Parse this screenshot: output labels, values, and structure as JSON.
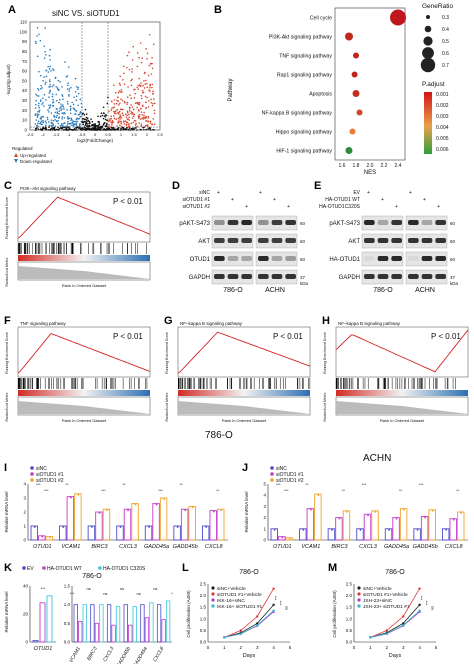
{
  "panels": {
    "A": {
      "label": "A",
      "title": "siNC VS. siOTUD1",
      "ylabel": "-log10(p.adjust)",
      "xlabel": "log2(FoldChange)",
      "yticks": [
        "0",
        "10",
        "20",
        "30",
        "40",
        "50",
        "60",
        "70",
        "80",
        "90",
        "100",
        "110"
      ],
      "xticks": [
        "-2.5",
        "-2",
        "-1.5",
        "-1",
        "-0.5",
        "0",
        "0.5",
        "1",
        "1.5",
        "2",
        "2.5"
      ],
      "legend_title": "Regulated",
      "legend_up": "Up-regulated",
      "legend_down": "Down-regulated",
      "colors": {
        "up": "#d9442c",
        "down": "#2b7bba",
        "ns": "#111111"
      }
    },
    "B": {
      "label": "B",
      "ylabel": "Pathway",
      "xlabel": "NES",
      "pathways": [
        "Cell cycle",
        "PI3K-Akt signaling pathway",
        "TNF signaling pathway",
        "Rap1 signaling pathway",
        "Apoptosis",
        "NF-kappa B signaling pathway",
        "Hippo signaling pathway",
        "HIF-1 signaling pathway"
      ],
      "xticks": [
        "1.6",
        "2.0",
        "2.4",
        "1.8",
        "2.2"
      ],
      "size_title": "GeneRatio",
      "size_labels": [
        "0.3",
        "0.4",
        "0.5",
        "0.6",
        "0.7"
      ],
      "color_title": "P.adjust",
      "color_labels": [
        "0.001",
        "0.002",
        "0.003",
        "0.004",
        "0.005",
        "0.006"
      ]
    },
    "C": {
      "label": "C",
      "title": "PI3K–Akt signaling pathway",
      "pval": "P < 0.01",
      "ylabel1": "Running Enrichment Score",
      "ylabel2": "Ranked List Metric",
      "xlabel": "Rank in Ordered Dataset"
    },
    "D": {
      "label": "D",
      "rows": [
        "siNC",
        "siOTUD1 #1",
        "siOTUD1 #2"
      ],
      "pm": [
        "+",
        "+",
        "+",
        "+"
      ],
      "blots": [
        "pAKT-S473",
        "AKT",
        "OTUD1",
        "GAPDH"
      ],
      "kda": [
        "60",
        "60",
        "60",
        "37"
      ],
      "kda_unit": "kDa",
      "cells": [
        "786-O",
        "ACHN"
      ]
    },
    "E": {
      "label": "E",
      "rows": [
        "EV",
        "HA-OTUD1 WT",
        "HA-OTUD1C320S"
      ],
      "pm": [
        "+",
        "+",
        "+",
        "+",
        "+",
        "+"
      ],
      "blots": [
        "pAKT-S473",
        "AKT",
        "HA-OTUD1",
        "GAPDH"
      ],
      "kda": [
        "60",
        "60",
        "60",
        "37"
      ],
      "kda_unit": "kDa",
      "cells": [
        "786-O",
        "ACHN"
      ]
    },
    "F": {
      "label": "F",
      "title": "TNF signaling pathway",
      "pval": "P < 0.01",
      "ylabel1": "Running Enrichment Score",
      "ylabel2": "Ranked List Metric",
      "xlabel": "Rank in Ordered Dataset"
    },
    "G": {
      "label": "G",
      "title": "NF–kappa B signaling pathway",
      "pval": "P < 0.01",
      "ylabel1": "Running Enrichment Score",
      "ylabel2": "Ranked List Metric",
      "xlabel": "Rank in Ordered Dataset"
    },
    "H": {
      "label": "H",
      "title": "NF–kappa B signaling pathway",
      "pval": "P < 0.01",
      "ylabel1": "Running Enrichment Score",
      "ylabel2": "Ranked List Metric",
      "xlabel": "Rank in Ordered Dataset"
    },
    "cellA": "786-O",
    "cellB": "ACHN",
    "I": {
      "label": "I",
      "legend": [
        "siNC",
        "siOTUD1 #1",
        "siOTUD1 #2"
      ],
      "ylabel": "Relative mRNA level",
      "yticks": [
        "0",
        "1",
        "2",
        "3",
        "4"
      ],
      "genes": [
        "OTUD1",
        "VCAM1",
        "BIRC3",
        "CXCL3",
        "GADD45a",
        "GADD45b",
        "CXCL8"
      ],
      "sig": [
        "***",
        "***",
        "**",
        "***",
        "**",
        "***",
        "**",
        "**"
      ]
    },
    "J": {
      "label": "J",
      "legend": [
        "siNC",
        "siOTUD1 #1",
        "siOTUD1 #2"
      ],
      "ylabel": "Relative mRNA level",
      "yticks": [
        "0",
        "1",
        "2",
        "3",
        "4",
        "5"
      ],
      "genes": [
        "OTUD1",
        "VCAM1",
        "BIRC3",
        "CXCL3",
        "GADD45a",
        "GADD45b",
        "CXCL8"
      ],
      "sig": [
        "***",
        "***",
        "**",
        "**",
        "***",
        "**",
        "***",
        "**"
      ]
    },
    "K": {
      "label": "K",
      "legend": [
        "EV",
        "HA-OTUD1 WT",
        "HA-OTUD1 C320S"
      ],
      "cell": "786-O",
      "ylabel": "Relative mRNA level",
      "yticks_left": [
        "0",
        "20",
        "40"
      ],
      "yticks_right": [
        "0.0",
        "0.5",
        "1.0",
        "1.5"
      ],
      "genes": [
        "OTUD1",
        "VCAM1",
        "BIRC3",
        "CXCL3",
        "GADD45b",
        "GADD45a",
        "CXCL8"
      ],
      "sig": [
        "***",
        "***",
        "ns",
        "ns",
        "ns",
        "ns",
        "ns",
        "*"
      ]
    },
    "L": {
      "label": "L",
      "cell": "786-O",
      "legend": [
        "siNC+Vehicle",
        "siOTUD1 #1+Vehicle",
        "IKK-16+siNC",
        "IKK-16+ siOTUD1 #1"
      ],
      "ylabel": "Cell proliferation (A450)",
      "xlabel": "Days",
      "xticks": [
        "0",
        "1",
        "2",
        "3",
        "4",
        "5"
      ],
      "yticks": [
        "0.0",
        "0.5",
        "1.0",
        "1.5",
        "2.0",
        "2.5"
      ],
      "sig": [
        "***",
        "***",
        "ns"
      ]
    },
    "M": {
      "label": "M",
      "cell": "786-O",
      "legend": [
        "siNC+Vehicle",
        "siOTUD1 #1+Vehicle",
        "JSH-23+siNC",
        "JSH-23+ siOTUD1 #1"
      ],
      "ylabel": "Cell proliferation (A450)",
      "xlabel": "Days",
      "xticks": [
        "0",
        "1",
        "2",
        "3",
        "4",
        "5"
      ],
      "yticks": [
        "0.0",
        "0.5",
        "1.0",
        "1.5",
        "2.0",
        "2.5"
      ],
      "sig": [
        "***",
        "***",
        "ns"
      ]
    }
  },
  "chart_data": [
    {
      "type": "scatter",
      "name": "Volcano",
      "xlim": [
        -2.5,
        2.5
      ],
      "ylim": [
        0,
        110
      ]
    },
    {
      "type": "scatter",
      "name": "KEGG dotplot",
      "x": [
        2.4,
        1.7,
        1.8,
        1.78,
        1.8,
        1.85,
        1.75,
        1.7
      ],
      "y": [
        "Cell cycle",
        "PI3K-Akt signaling pathway",
        "TNF signaling pathway",
        "Rap1 signaling pathway",
        "Apoptosis",
        "NF-kappa B signaling pathway",
        "Hippo signaling pathway",
        "HIF-1 signaling pathway"
      ]
    },
    {
      "type": "bar",
      "name": "I 786-O qPCR",
      "categories": [
        "OTUD1",
        "VCAM1",
        "BIRC3",
        "CXCL3",
        "GADD45a",
        "GADD45b",
        "CXCL8"
      ],
      "series": [
        {
          "name": "siNC",
          "values": [
            1,
            1,
            1,
            1,
            1,
            1,
            1
          ]
        },
        {
          "name": "siOTUD1 #1",
          "values": [
            0.3,
            3.1,
            2.0,
            2.2,
            2.6,
            2.2,
            2.1
          ]
        },
        {
          "name": "siOTUD1 #2",
          "values": [
            0.25,
            3.3,
            2.2,
            2.6,
            3.0,
            2.4,
            2.2
          ]
        }
      ],
      "ylim": [
        0,
        4
      ]
    },
    {
      "type": "bar",
      "name": "J ACHN qPCR",
      "categories": [
        "OTUD1",
        "VCAM1",
        "BIRC3",
        "CXCL3",
        "GADD45a",
        "GADD45b",
        "CXCL8"
      ],
      "series": [
        {
          "name": "siNC",
          "values": [
            1,
            1,
            1,
            1,
            1,
            1,
            1
          ]
        },
        {
          "name": "siOTUD1 #1",
          "values": [
            0.3,
            2.8,
            2.0,
            2.3,
            2.0,
            2.1,
            1.9
          ]
        },
        {
          "name": "siOTUD1 #2",
          "values": [
            0.2,
            4.1,
            2.6,
            2.6,
            2.8,
            2.7,
            2.5
          ]
        }
      ],
      "ylim": [
        0,
        5
      ]
    },
    {
      "type": "bar",
      "name": "K 786-O overexpression",
      "categories": [
        "OTUD1",
        "VCAM1",
        "BIRC3",
        "CXCL3",
        "GADD45b",
        "GADD45a",
        "CXCL8"
      ],
      "series": [
        {
          "name": "EV",
          "values": [
            1,
            1,
            1,
            1,
            1,
            1,
            1
          ]
        },
        {
          "name": "HA-OTUD1 WT",
          "values": [
            28,
            0.55,
            0.5,
            0.45,
            0.45,
            0.65,
            0.6
          ]
        },
        {
          "name": "HA-OTUD1 C320S",
          "values": [
            33,
            1.0,
            1.0,
            0.95,
            0.95,
            1.05,
            1.1
          ]
        }
      ]
    },
    {
      "type": "line",
      "name": "L proliferation",
      "x": [
        1,
        2,
        3,
        4
      ],
      "series": [
        {
          "name": "siNC+Vehicle",
          "values": [
            0.2,
            0.4,
            0.8,
            1.6
          ]
        },
        {
          "name": "siOTUD1 #1+Vehicle",
          "values": [
            0.2,
            0.5,
            1.1,
            2.3
          ]
        },
        {
          "name": "IKK-16+siNC",
          "values": [
            0.2,
            0.35,
            0.7,
            1.3
          ]
        },
        {
          "name": "IKK-16+ siOTUD1 #1",
          "values": [
            0.2,
            0.35,
            0.72,
            1.35
          ]
        }
      ],
      "ylim": [
        0,
        2.5
      ]
    },
    {
      "type": "line",
      "name": "M proliferation",
      "x": [
        1,
        2,
        3,
        4
      ],
      "series": [
        {
          "name": "siNC+Vehicle",
          "values": [
            0.2,
            0.4,
            0.8,
            1.6
          ]
        },
        {
          "name": "siOTUD1 #1+Vehicle",
          "values": [
            0.2,
            0.5,
            1.1,
            2.3
          ]
        },
        {
          "name": "JSH-23+siNC",
          "values": [
            0.2,
            0.35,
            0.7,
            1.3
          ]
        },
        {
          "name": "JSH-23+ siOTUD1 #1",
          "values": [
            0.2,
            0.36,
            0.72,
            1.35
          ]
        }
      ],
      "ylim": [
        0,
        2.5
      ]
    }
  ]
}
